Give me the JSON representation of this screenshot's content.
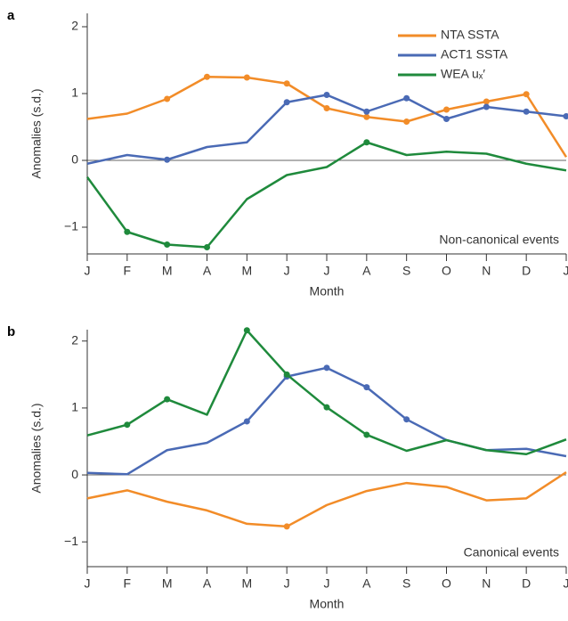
{
  "chart_data": [
    {
      "type": "line",
      "panel": "a",
      "xlabel": "Month",
      "ylabel": "Anomalies (s.d.)",
      "annotation": "Non-canonical events",
      "categories": [
        "J",
        "F",
        "M",
        "A",
        "M",
        "J",
        "J",
        "A",
        "S",
        "O",
        "N",
        "D",
        "J"
      ],
      "ylim": [
        -1.4,
        2.2
      ],
      "yticks": [
        {
          "value": -1,
          "label": "−1"
        },
        0,
        1,
        2
      ],
      "series": [
        {
          "name": "NTA SSTA",
          "color": "#f28c28",
          "values": [
            0.62,
            0.7,
            0.92,
            1.25,
            1.24,
            1.15,
            0.78,
            0.65,
            0.58,
            0.76,
            0.88,
            0.99,
            0.05
          ],
          "markers": [
            false,
            false,
            true,
            true,
            true,
            true,
            true,
            true,
            true,
            true,
            true,
            true,
            false
          ]
        },
        {
          "name": "ACT1 SSTA",
          "color": "#4a6ab5",
          "values": [
            -0.05,
            0.08,
            0.01,
            0.2,
            0.27,
            0.87,
            0.98,
            0.73,
            0.93,
            0.62,
            0.8,
            0.73,
            0.66
          ],
          "markers": [
            false,
            false,
            true,
            false,
            false,
            true,
            true,
            true,
            true,
            true,
            true,
            true,
            true
          ]
        },
        {
          "name": "WEA uₓ′",
          "color": "#1f8a3c",
          "values": [
            -0.25,
            -1.07,
            -1.26,
            -1.3,
            -0.58,
            -0.22,
            -0.1,
            0.27,
            0.08,
            0.13,
            0.1,
            -0.05,
            -0.15
          ],
          "markers": [
            false,
            true,
            true,
            true,
            false,
            false,
            false,
            true,
            false,
            false,
            false,
            false,
            false
          ]
        }
      ]
    },
    {
      "type": "line",
      "panel": "b",
      "xlabel": "Month",
      "ylabel": "Anomalies (s.d.)",
      "annotation": "Canonical events",
      "categories": [
        "J",
        "F",
        "M",
        "A",
        "M",
        "J",
        "J",
        "A",
        "S",
        "O",
        "N",
        "D",
        "J"
      ],
      "ylim": [
        -1.37,
        2.17
      ],
      "yticks": [
        {
          "value": -1,
          "label": "−1"
        },
        0,
        1,
        2
      ],
      "series": [
        {
          "color": "#f28c28",
          "values": [
            -0.35,
            -0.23,
            -0.4,
            -0.53,
            -0.73,
            -0.77,
            -0.45,
            -0.24,
            -0.12,
            -0.18,
            -0.38,
            -0.35,
            0.04
          ],
          "markers": [
            false,
            false,
            false,
            false,
            false,
            true,
            false,
            false,
            false,
            false,
            false,
            false,
            false
          ]
        },
        {
          "color": "#4a6ab5",
          "values": [
            0.03,
            0.01,
            0.37,
            0.48,
            0.8,
            1.47,
            1.6,
            1.31,
            0.83,
            0.52,
            0.37,
            0.39,
            0.28
          ],
          "markers": [
            false,
            false,
            false,
            false,
            true,
            true,
            true,
            true,
            true,
            false,
            false,
            false,
            false
          ]
        },
        {
          "color": "#1f8a3c",
          "values": [
            0.59,
            0.75,
            1.13,
            0.9,
            2.16,
            1.5,
            1.01,
            0.6,
            0.36,
            0.52,
            0.37,
            0.31,
            0.53
          ],
          "markers": [
            false,
            true,
            true,
            false,
            true,
            true,
            true,
            true,
            false,
            false,
            false,
            false,
            false
          ]
        }
      ]
    }
  ]
}
